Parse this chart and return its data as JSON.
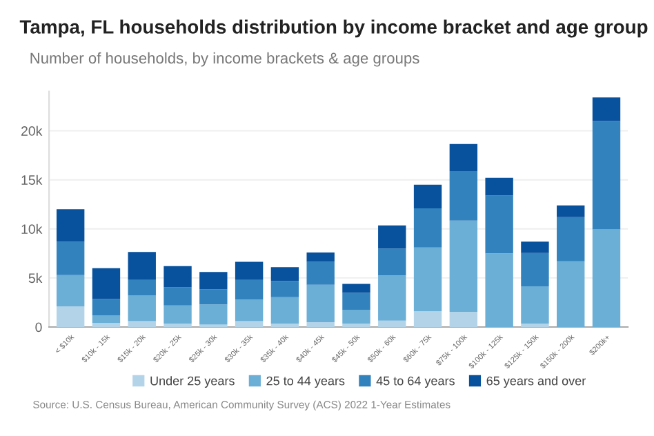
{
  "chart_data": {
    "type": "bar",
    "stacked": true,
    "title": "Tampa, FL households distribution by income bracket and age group",
    "subtitle": "Number of households, by income brackets & age groups",
    "categories": [
      "< $10k",
      "$10k - 15k",
      "$15k - 20k",
      "$20k - 25k",
      "$25k - 30k",
      "$30k - 35k",
      "$35k - 40k",
      "$40k - 45k",
      "$45k - 50k",
      "$50k - 60k",
      "$60k - 75k",
      "$75k - 100k",
      "$100k - 125k",
      "$125k - 150k",
      "$150k - 200k",
      "$200k+"
    ],
    "series": [
      {
        "name": "Under 25 years",
        "color": "#b3d3e8",
        "values": [
          2100,
          400,
          600,
          350,
          250,
          600,
          350,
          500,
          350,
          650,
          1600,
          1550,
          null,
          350,
          null,
          null
        ]
      },
      {
        "name": "25 to 44 years",
        "color": "#6baed6",
        "values": [
          3200,
          800,
          2600,
          1850,
          2050,
          2200,
          2700,
          3800,
          1400,
          4600,
          6500,
          9300,
          7500,
          3800,
          6700,
          9950
        ]
      },
      {
        "name": "45 to 64 years",
        "color": "#3182bd",
        "values": [
          3400,
          1650,
          1600,
          1850,
          1550,
          2000,
          1650,
          2350,
          1750,
          2750,
          4000,
          5050,
          5900,
          3400,
          4500,
          11050
        ]
      },
      {
        "name": "65 years and over",
        "color": "#08519c",
        "values": [
          3300,
          3150,
          2850,
          2150,
          1750,
          1850,
          1400,
          950,
          900,
          2350,
          2400,
          2750,
          1800,
          1150,
          1200,
          2400
        ]
      }
    ],
    "ylim": [
      0,
      24000
    ],
    "yticks": [
      0,
      {
        "value": 5000,
        "label": "5k"
      },
      {
        "value": 10000,
        "label": "10k"
      },
      {
        "value": 15000,
        "label": "15k"
      },
      {
        "value": 20000,
        "label": "20k"
      }
    ],
    "grid": "y",
    "legend": "bottom",
    "annotations": [
      "Source: U.S. Census Bureau, American Community Survey (ACS) 2022 1-Year Estimates"
    ]
  }
}
